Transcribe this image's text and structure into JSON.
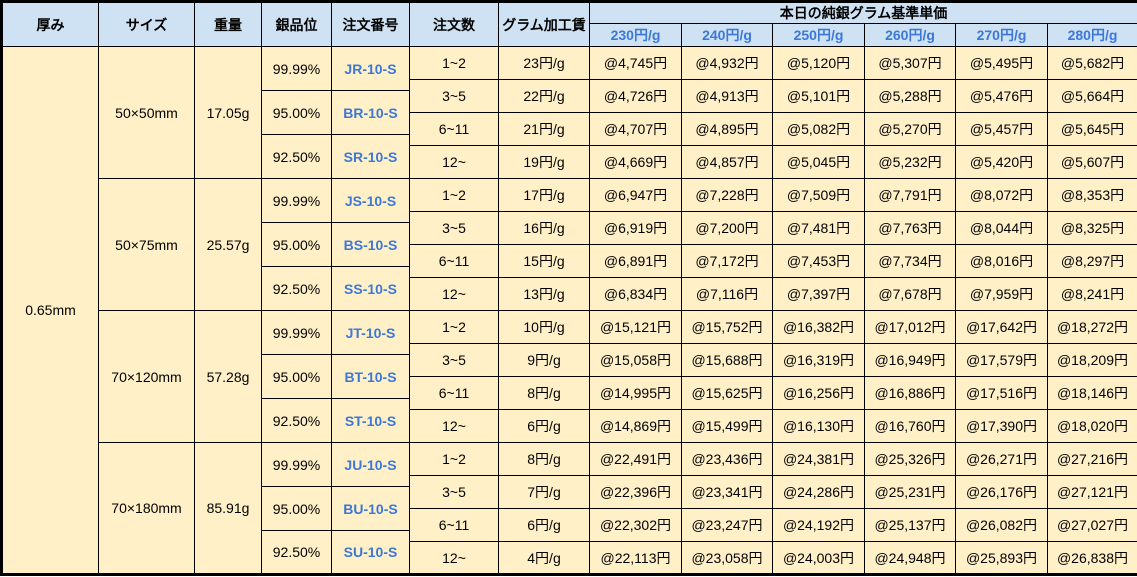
{
  "colors": {
    "header_bg": "#cfe2f3",
    "cell_bg": "#fff0c8",
    "accent_blue": "#3c78d8",
    "border": "#000000",
    "text": "#000000"
  },
  "table": {
    "headers": {
      "thickness": "厚み",
      "size": "サイズ",
      "weight": "重量",
      "purity": "銀品位",
      "order_code": "注文番号",
      "order_qty": "注文数",
      "gram_fee": "グラム加工賃",
      "base_price_group": "本日の純銀グラム基準単価",
      "price_columns": [
        "230円/g",
        "240円/g",
        "250円/g",
        "260円/g",
        "270円/g",
        "280円/g"
      ]
    },
    "thickness_value": "0.65mm",
    "blocks": [
      {
        "size": "50×50mm",
        "weight": "17.05g",
        "purities": [
          {
            "purity": "99.99%",
            "code": "JR-10-S"
          },
          {
            "purity": "95.00%",
            "code": "BR-10-S"
          },
          {
            "purity": "92.50%",
            "code": "SR-10-S"
          }
        ],
        "rows": [
          {
            "qty": "1~2",
            "fee": "23円/g",
            "prices": [
              "@4,745円",
              "@4,932円",
              "@5,120円",
              "@5,307円",
              "@5,495円",
              "@5,682円"
            ]
          },
          {
            "qty": "3~5",
            "fee": "22円/g",
            "prices": [
              "@4,726円",
              "@4,913円",
              "@5,101円",
              "@5,288円",
              "@5,476円",
              "@5,664円"
            ]
          },
          {
            "qty": "6~11",
            "fee": "21円/g",
            "prices": [
              "@4,707円",
              "@4,895円",
              "@5,082円",
              "@5,270円",
              "@5,457円",
              "@5,645円"
            ]
          },
          {
            "qty": "12~",
            "fee": "19円/g",
            "prices": [
              "@4,669円",
              "@4,857円",
              "@5,045円",
              "@5,232円",
              "@5,420円",
              "@5,607円"
            ]
          }
        ]
      },
      {
        "size": "50×75mm",
        "weight": "25.57g",
        "purities": [
          {
            "purity": "99.99%",
            "code": "JS-10-S"
          },
          {
            "purity": "95.00%",
            "code": "BS-10-S"
          },
          {
            "purity": "92.50%",
            "code": "SS-10-S"
          }
        ],
        "rows": [
          {
            "qty": "1~2",
            "fee": "17円/g",
            "prices": [
              "@6,947円",
              "@7,228円",
              "@7,509円",
              "@7,791円",
              "@8,072円",
              "@8,353円"
            ]
          },
          {
            "qty": "3~5",
            "fee": "16円/g",
            "prices": [
              "@6,919円",
              "@7,200円",
              "@7,481円",
              "@7,763円",
              "@8,044円",
              "@8,325円"
            ]
          },
          {
            "qty": "6~11",
            "fee": "15円/g",
            "prices": [
              "@6,891円",
              "@7,172円",
              "@7,453円",
              "@7,734円",
              "@8,016円",
              "@8,297円"
            ]
          },
          {
            "qty": "12~",
            "fee": "13円/g",
            "prices": [
              "@6,834円",
              "@7,116円",
              "@7,397円",
              "@7,678円",
              "@7,959円",
              "@8,241円"
            ]
          }
        ]
      },
      {
        "size": "70×120mm",
        "weight": "57.28g",
        "purities": [
          {
            "purity": "99.99%",
            "code": "JT-10-S"
          },
          {
            "purity": "95.00%",
            "code": "BT-10-S"
          },
          {
            "purity": "92.50%",
            "code": "ST-10-S"
          }
        ],
        "rows": [
          {
            "qty": "1~2",
            "fee": "10円/g",
            "prices": [
              "@15,121円",
              "@15,752円",
              "@16,382円",
              "@17,012円",
              "@17,642円",
              "@18,272円"
            ]
          },
          {
            "qty": "3~5",
            "fee": "9円/g",
            "prices": [
              "@15,058円",
              "@15,688円",
              "@16,319円",
              "@16,949円",
              "@17,579円",
              "@18,209円"
            ]
          },
          {
            "qty": "6~11",
            "fee": "8円/g",
            "prices": [
              "@14,995円",
              "@15,625円",
              "@16,256円",
              "@16,886円",
              "@17,516円",
              "@18,146円"
            ]
          },
          {
            "qty": "12~",
            "fee": "6円/g",
            "prices": [
              "@14,869円",
              "@15,499円",
              "@16,130円",
              "@16,760円",
              "@17,390円",
              "@18,020円"
            ]
          }
        ]
      },
      {
        "size": "70×180mm",
        "weight": "85.91g",
        "purities": [
          {
            "purity": "99.99%",
            "code": "JU-10-S"
          },
          {
            "purity": "95.00%",
            "code": "BU-10-S"
          },
          {
            "purity": "92.50%",
            "code": "SU-10-S"
          }
        ],
        "rows": [
          {
            "qty": "1~2",
            "fee": "8円/g",
            "prices": [
              "@22,491円",
              "@23,436円",
              "@24,381円",
              "@25,326円",
              "@26,271円",
              "@27,216円"
            ]
          },
          {
            "qty": "3~5",
            "fee": "7円/g",
            "prices": [
              "@22,396円",
              "@23,341円",
              "@24,286円",
              "@25,231円",
              "@26,176円",
              "@27,121円"
            ]
          },
          {
            "qty": "6~11",
            "fee": "6円/g",
            "prices": [
              "@22,302円",
              "@23,247円",
              "@24,192円",
              "@25,137円",
              "@26,082円",
              "@27,027円"
            ]
          },
          {
            "qty": "12~",
            "fee": "4円/g",
            "prices": [
              "@22,113円",
              "@23,058円",
              "@24,003円",
              "@24,948円",
              "@25,893円",
              "@26,838円"
            ]
          }
        ]
      }
    ]
  }
}
